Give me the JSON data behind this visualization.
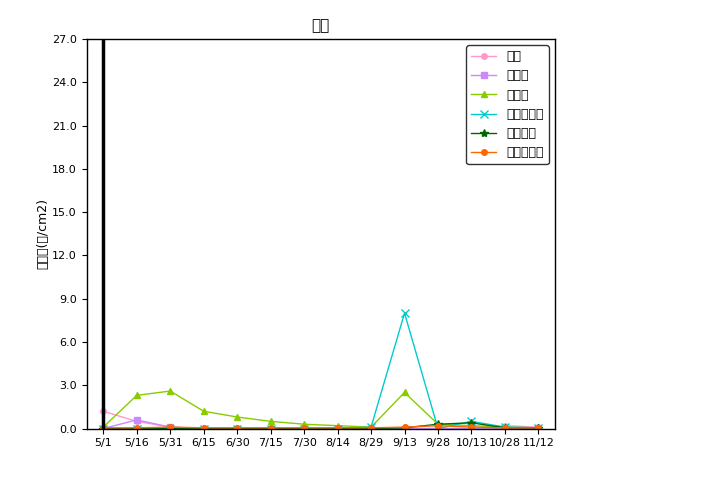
{
  "title": "府中",
  "ylabel": "花粉数(個/cm2)",
  "x_labels": [
    "5/1",
    "5/16",
    "5/31",
    "6/15",
    "6/30",
    "7/15",
    "7/30",
    "8/14",
    "8/29",
    "9/13",
    "9/28",
    "10/13",
    "10/28",
    "11/12"
  ],
  "ylim": [
    0,
    27.0
  ],
  "yticks": [
    0.0,
    3.0,
    6.0,
    9.0,
    12.0,
    15.0,
    18.0,
    21.0,
    24.0,
    27.0
  ],
  "series": [
    {
      "name": "スギ",
      "color": "#ff99cc",
      "marker": "o",
      "markersize": 4,
      "linewidth": 1,
      "values": [
        1.2,
        0.5,
        0.1,
        0.0,
        0.0,
        0.0,
        0.0,
        0.0,
        0.0,
        0.0,
        0.0,
        0.0,
        0.2,
        0.1
      ]
    },
    {
      "name": "ヒノキ",
      "color": "#cc88ff",
      "marker": "s",
      "markersize": 4,
      "linewidth": 1,
      "values": [
        0.0,
        0.6,
        0.1,
        0.0,
        0.0,
        0.0,
        0.0,
        0.0,
        0.0,
        0.0,
        0.0,
        0.0,
        0.0,
        0.0
      ]
    },
    {
      "name": "イネ科",
      "color": "#88cc00",
      "marker": "^",
      "markersize": 5,
      "linewidth": 1,
      "values": [
        0.1,
        2.3,
        2.6,
        1.2,
        0.8,
        0.5,
        0.3,
        0.2,
        0.1,
        2.5,
        0.3,
        0.2,
        0.1,
        0.05
      ]
    },
    {
      "name": "ブタクサ属",
      "color": "#00cccc",
      "marker": "x",
      "markersize": 6,
      "linewidth": 1,
      "values": [
        0.0,
        0.0,
        0.0,
        0.0,
        0.0,
        0.0,
        0.0,
        0.0,
        0.1,
        8.0,
        0.0,
        0.5,
        0.1,
        0.05
      ]
    },
    {
      "name": "ヨモギ属",
      "color": "#006600",
      "marker": "*",
      "markersize": 6,
      "linewidth": 1,
      "values": [
        0.0,
        0.0,
        0.0,
        0.0,
        0.0,
        0.0,
        0.0,
        0.0,
        0.0,
        0.05,
        0.3,
        0.4,
        0.05,
        0.05
      ]
    },
    {
      "name": "カナムグラ",
      "color": "#ff6600",
      "marker": "o",
      "markersize": 4,
      "linewidth": 1,
      "values": [
        0.05,
        0.05,
        0.1,
        0.05,
        0.05,
        0.05,
        0.05,
        0.05,
        0.05,
        0.1,
        0.2,
        0.1,
        0.05,
        0.05
      ]
    }
  ],
  "background_color": "#ffffff",
  "title_fontsize": 11,
  "ylabel_fontsize": 9,
  "tick_fontsize": 8,
  "legend_fontsize": 9
}
